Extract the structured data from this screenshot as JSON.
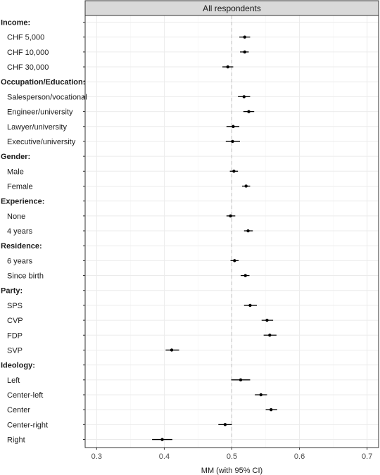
{
  "chart_data": {
    "type": "scatter",
    "panel_title": "All respondents",
    "xlabel": "MM (with 95% CI)",
    "xlim": [
      0.283,
      0.717
    ],
    "xticks": [
      0.3,
      0.4,
      0.5,
      0.6,
      0.7
    ],
    "xtick_labels": [
      "0.3",
      "0.4",
      "0.5",
      "0.6",
      "0.7"
    ],
    "reference_line": 0.5,
    "grid": true,
    "rows": [
      {
        "label": "Income:",
        "header": true
      },
      {
        "label": "CHF 5,000",
        "header": false,
        "estimate": 0.519,
        "lower": 0.511,
        "upper": 0.527
      },
      {
        "label": "CHF 10,000",
        "header": false,
        "estimate": 0.519,
        "lower": 0.512,
        "upper": 0.525
      },
      {
        "label": "CHF 30,000",
        "header": false,
        "estimate": 0.494,
        "lower": 0.486,
        "upper": 0.502
      },
      {
        "label": "Occupation/Education:",
        "header": true
      },
      {
        "label": "Salesperson/vocational",
        "header": false,
        "estimate": 0.518,
        "lower": 0.509,
        "upper": 0.527
      },
      {
        "label": "Engineer/university",
        "header": false,
        "estimate": 0.525,
        "lower": 0.517,
        "upper": 0.533
      },
      {
        "label": "Lawyer/university",
        "header": false,
        "estimate": 0.502,
        "lower": 0.492,
        "upper": 0.511
      },
      {
        "label": "Executive/university",
        "header": false,
        "estimate": 0.501,
        "lower": 0.491,
        "upper": 0.512
      },
      {
        "label": "Gender:",
        "header": true
      },
      {
        "label": "Male",
        "header": false,
        "estimate": 0.503,
        "lower": 0.497,
        "upper": 0.509
      },
      {
        "label": "Female",
        "header": false,
        "estimate": 0.521,
        "lower": 0.515,
        "upper": 0.527
      },
      {
        "label": "Experience:",
        "header": true
      },
      {
        "label": "None",
        "header": false,
        "estimate": 0.498,
        "lower": 0.492,
        "upper": 0.505
      },
      {
        "label": "4 years",
        "header": false,
        "estimate": 0.524,
        "lower": 0.518,
        "upper": 0.531
      },
      {
        "label": "Residence:",
        "header": true
      },
      {
        "label": "6 years",
        "header": false,
        "estimate": 0.504,
        "lower": 0.498,
        "upper": 0.51
      },
      {
        "label": "Since birth",
        "header": false,
        "estimate": 0.52,
        "lower": 0.513,
        "upper": 0.526
      },
      {
        "label": "Party:",
        "header": true
      },
      {
        "label": "SPS",
        "header": false,
        "estimate": 0.527,
        "lower": 0.518,
        "upper": 0.537
      },
      {
        "label": "CVP",
        "header": false,
        "estimate": 0.552,
        "lower": 0.544,
        "upper": 0.561
      },
      {
        "label": "FDP",
        "header": false,
        "estimate": 0.556,
        "lower": 0.547,
        "upper": 0.566
      },
      {
        "label": "SVP",
        "header": false,
        "estimate": 0.411,
        "lower": 0.402,
        "upper": 0.422
      },
      {
        "label": "Ideology:",
        "header": true
      },
      {
        "label": "Left",
        "header": false,
        "estimate": 0.513,
        "lower": 0.499,
        "upper": 0.527
      },
      {
        "label": "Center-left",
        "header": false,
        "estimate": 0.543,
        "lower": 0.534,
        "upper": 0.552
      },
      {
        "label": "Center",
        "header": false,
        "estimate": 0.558,
        "lower": 0.55,
        "upper": 0.567
      },
      {
        "label": "Center-right",
        "header": false,
        "estimate": 0.49,
        "lower": 0.48,
        "upper": 0.5
      },
      {
        "label": "Right",
        "header": false,
        "estimate": 0.397,
        "lower": 0.382,
        "upper": 0.412
      }
    ]
  },
  "colors": {
    "panel_background": "#ffffff",
    "strip_background": "#d9d9d9",
    "grid_major": "#ebebeb",
    "grid_minor": "#f5f5f5",
    "reference_line": "#bdbdbd",
    "point": "#000000",
    "border": "#333333"
  }
}
